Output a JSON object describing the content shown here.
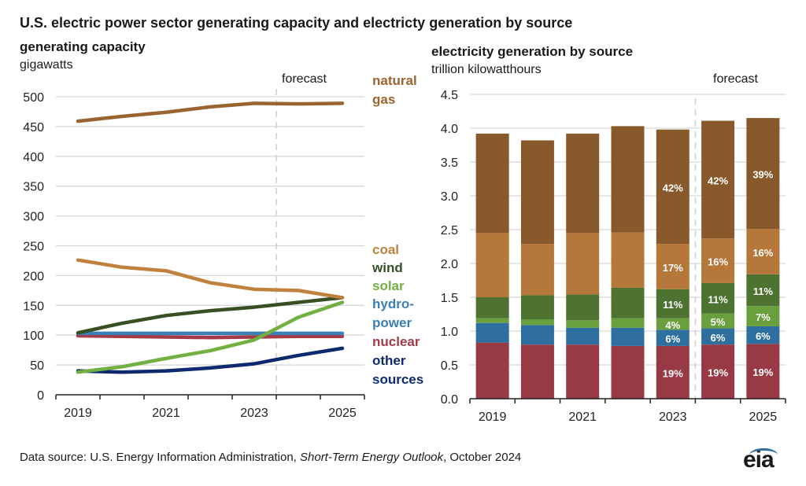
{
  "title": "U.S. electric power sector generating capacity and electricty generation by source",
  "source_prefix": "Data source: U.S. Energy Information Administration, ",
  "source_italic": "Short-Term Energy Outlook",
  "source_suffix": ", October 2024",
  "logo_text": "eia",
  "chart_data": [
    {
      "type": "line",
      "title": "generating capacity",
      "ylabel": "gigawatts",
      "annotation": "forecast",
      "x": [
        2019,
        2020,
        2021,
        2022,
        2023,
        2024,
        2025
      ],
      "x_tick_labels": [
        "2019",
        "2021",
        "2023",
        "2025"
      ],
      "ylim": [
        0,
        500
      ],
      "y_ticks": [
        0,
        50,
        100,
        150,
        200,
        250,
        300,
        350,
        400,
        450,
        500
      ],
      "grid": true,
      "legend_placement": "right (inline labels)",
      "series": [
        {
          "name": "natural gas",
          "label_lines": [
            "natural",
            "gas"
          ],
          "color": "#9a6430",
          "values": [
            459,
            467,
            474,
            483,
            489,
            488,
            489
          ]
        },
        {
          "name": "coal",
          "label_lines": [
            "coal"
          ],
          "color": "#c0803e",
          "values": [
            226,
            214,
            208,
            188,
            177,
            175,
            163
          ]
        },
        {
          "name": "wind",
          "label_lines": [
            "wind"
          ],
          "color": "#364f23",
          "values": [
            104,
            120,
            133,
            141,
            147,
            155,
            163
          ]
        },
        {
          "name": "solar",
          "label_lines": [
            "solar"
          ],
          "color": "#72b042",
          "values": [
            38,
            47,
            61,
            74,
            92,
            130,
            155
          ]
        },
        {
          "name": "hydropower",
          "label_lines": [
            "hydro-",
            "power"
          ],
          "color": "#3a7fb5",
          "values": [
            103,
            103,
            103,
            103,
            103,
            103,
            103
          ]
        },
        {
          "name": "nuclear",
          "label_lines": [
            "nuclear"
          ],
          "color": "#a53b49",
          "values": [
            99,
            98,
            97,
            96,
            97,
            98,
            98
          ]
        },
        {
          "name": "other sources",
          "label_lines": [
            "other",
            "sources"
          ],
          "color": "#0e2a6e",
          "values": [
            40,
            38,
            40,
            45,
            52,
            66,
            78
          ]
        }
      ]
    },
    {
      "type": "bar",
      "stacked": true,
      "title": "electricity generation by source",
      "ylabel": "trillion kilowatthours",
      "annotation": "forecast",
      "categories": [
        "2019",
        "2020",
        "2021",
        "2022",
        "2023",
        "2024",
        "2025"
      ],
      "x_tick_labels": [
        "2019",
        "",
        "2021",
        "",
        "2023",
        "",
        "2025"
      ],
      "ylim": [
        0,
        4.5
      ],
      "y_ticks": [
        "0.0",
        "0.5",
        "1.0",
        "1.5",
        "2.0",
        "2.5",
        "3.0",
        "3.5",
        "4.0",
        "4.5"
      ],
      "grid": true,
      "series": [
        {
          "name": "nuclear",
          "color": "#983a45",
          "values": [
            0.83,
            0.8,
            0.8,
            0.78,
            0.78,
            0.8,
            0.81
          ],
          "labels": [
            null,
            null,
            null,
            null,
            "19%",
            "19%",
            "19%"
          ]
        },
        {
          "name": "hydropower",
          "color": "#2e6fa0",
          "values": [
            0.29,
            0.29,
            0.25,
            0.27,
            0.24,
            0.24,
            0.26
          ],
          "labels": [
            null,
            null,
            null,
            null,
            "6%",
            "6%",
            "6%"
          ]
        },
        {
          "name": "solar",
          "color": "#6a9f3e",
          "values": [
            0.07,
            0.08,
            0.11,
            0.14,
            0.17,
            0.22,
            0.3
          ],
          "labels": [
            null,
            null,
            null,
            null,
            "4%",
            "5%",
            "7%"
          ]
        },
        {
          "name": "wind",
          "color": "#4e7230",
          "values": [
            0.31,
            0.36,
            0.38,
            0.45,
            0.43,
            0.45,
            0.47
          ],
          "labels": [
            null,
            null,
            null,
            null,
            "11%",
            "11%",
            "11%"
          ]
        },
        {
          "name": "coal",
          "color": "#b5773a",
          "values": [
            0.95,
            0.76,
            0.91,
            0.82,
            0.67,
            0.66,
            0.67
          ],
          "labels": [
            null,
            null,
            null,
            null,
            "17%",
            "16%",
            "16%"
          ]
        },
        {
          "name": "natural gas",
          "color": "#87592b",
          "values": [
            1.47,
            1.53,
            1.47,
            1.57,
            1.69,
            1.74,
            1.64
          ],
          "labels": [
            null,
            null,
            null,
            null,
            "42%",
            "42%",
            "39%"
          ]
        }
      ]
    }
  ]
}
